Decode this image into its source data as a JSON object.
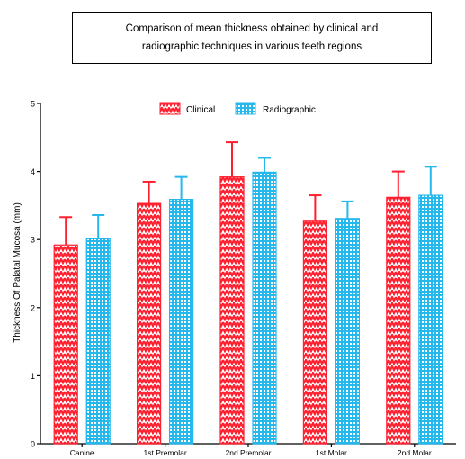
{
  "chart_data": {
    "type": "bar",
    "title_lines": [
      "Comparison of mean thickness obtained by clinical and",
      "radiographic techniques in various teeth regions"
    ],
    "xlabel": "",
    "ylabel": "Thickness Of Palatal Mucosa (mm)",
    "categories": [
      "Canine",
      "1st Premolar",
      "2nd Premolar",
      "1st Molar",
      "2nd Molar"
    ],
    "ylim": [
      0,
      5
    ],
    "yticks": [
      "0",
      "1",
      "2",
      "3",
      "4",
      "5"
    ],
    "legend_position": "top",
    "grid": false,
    "series": [
      {
        "name": "Clinical",
        "color": "#ff1f2e",
        "pattern": "zigzag",
        "values": [
          2.92,
          3.53,
          3.92,
          3.27,
          3.62
        ],
        "error_upper": [
          3.33,
          3.85,
          4.43,
          3.65,
          4.0
        ]
      },
      {
        "name": "Radiographic",
        "color": "#25b8ec",
        "pattern": "grid",
        "values": [
          3.01,
          3.59,
          3.99,
          3.31,
          3.65
        ],
        "error_upper": [
          3.36,
          3.92,
          4.2,
          3.56,
          4.07
        ]
      }
    ]
  }
}
